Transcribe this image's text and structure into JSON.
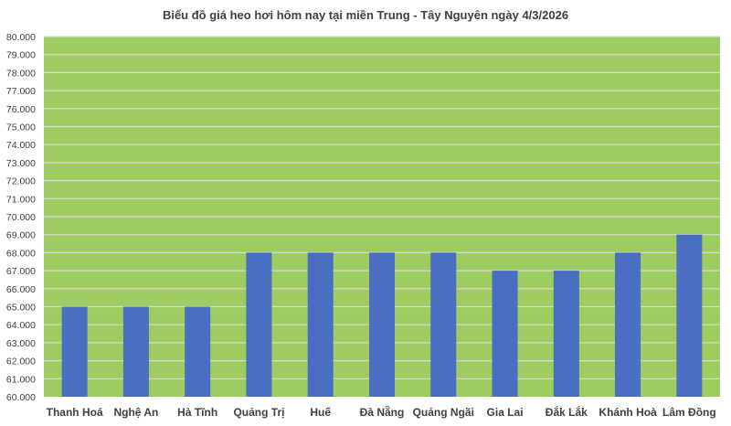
{
  "chart_data": {
    "type": "bar",
    "title": "Biểu đồ giá heo hơi hôm nay tại miền Trung - Tây Nguyên ngày 4/3/2026",
    "categories": [
      "Thanh Hoá",
      "Nghệ An",
      "Hà Tĩnh",
      "Quảng Trị",
      "Huế",
      "Đà Nẵng",
      "Quảng Ngãi",
      "Gia Lai",
      "Đắk Lắk",
      "Khánh Hoà",
      "Lâm Đồng"
    ],
    "values": [
      65000,
      65000,
      65000,
      68000,
      68000,
      68000,
      68000,
      67000,
      67000,
      68000,
      69000
    ],
    "ylim": [
      60000,
      80000
    ],
    "ytick_step": 1000,
    "ytick_labels": [
      "60.000",
      "61.000",
      "62.000",
      "63.000",
      "64.000",
      "65.000",
      "66.000",
      "67.000",
      "68.000",
      "69.000",
      "70.000",
      "71.000",
      "72.000",
      "73.000",
      "74.000",
      "75.000",
      "76.000",
      "77.000",
      "78.000",
      "79.000",
      "80.000"
    ],
    "xlabel": "",
    "ylabel": "",
    "grid": true,
    "colors": {
      "plot_background": "#9dcc60",
      "bar": "#4a6ec1",
      "grid": "#d9d9d9"
    }
  }
}
